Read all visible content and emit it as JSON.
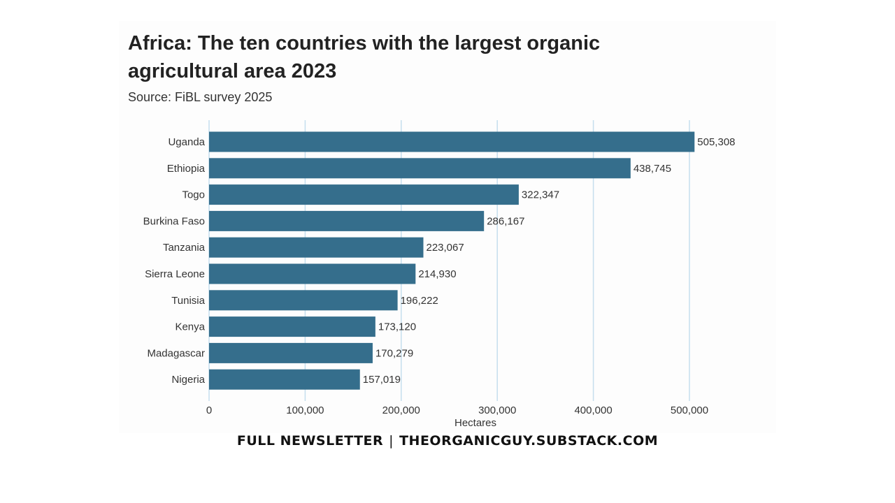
{
  "chart_data": {
    "type": "bar",
    "orientation": "horizontal",
    "title": "Africa: The ten countries with the largest organic agricultural area 2023",
    "subtitle": "Source: FiBL survey 2025",
    "xlabel": "Hectares",
    "ylabel": "",
    "categories": [
      "Uganda",
      "Ethiopia",
      "Togo",
      "Burkina Faso",
      "Tanzania",
      "Sierra Leone",
      "Tunisia",
      "Kenya",
      "Madagascar",
      "Nigeria"
    ],
    "values": [
      505308,
      438745,
      322347,
      286167,
      223067,
      214930,
      196222,
      173120,
      170279,
      157019
    ],
    "value_labels": [
      "505,308",
      "438,745",
      "322,347",
      "286,167",
      "223,067",
      "214,930",
      "196,222",
      "173,120",
      "170,279",
      "157,019"
    ],
    "xlim": [
      0,
      500000
    ],
    "xticks": [
      0,
      100000,
      200000,
      300000,
      400000,
      500000
    ],
    "xtick_labels": [
      "0",
      "100,000",
      "200,000",
      "300,000",
      "400,000",
      "500,000"
    ],
    "grid": "vertical",
    "legend": "none",
    "bar_color": "#356e8c",
    "grid_color": "#c5dfee"
  },
  "footer": {
    "left": "FULL NEWSLETTER",
    "separator": "|",
    "right": "THEORGANICGUY.SUBSTACK.COM"
  }
}
